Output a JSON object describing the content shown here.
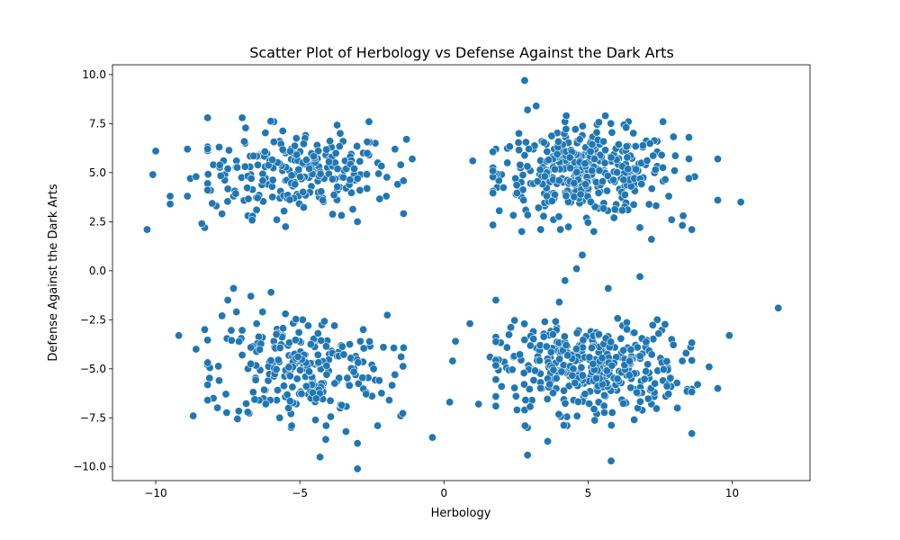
{
  "chart_data": {
    "type": "scatter",
    "title": "Scatter Plot of Herbology vs Defense Against the Dark Arts",
    "xlabel": "Herbology",
    "ylabel": "Defense Against the Dark Arts",
    "xlim": [
      -11.5,
      12.7
    ],
    "ylim": [
      -10.7,
      10.5
    ],
    "xticks": [
      -10,
      -5,
      0,
      5,
      10
    ],
    "yticks": [
      -10.0,
      -7.5,
      -5.0,
      -2.5,
      0.0,
      2.5,
      5.0,
      7.5,
      10.0
    ],
    "xtick_labels": [
      "−10",
      "−5",
      "0",
      "5",
      "10"
    ],
    "ytick_labels": [
      "−10.0",
      "−7.5",
      "−5.0",
      "−2.5",
      "0.0",
      "2.5",
      "5.0",
      "7.5",
      "10.0"
    ],
    "grid": false,
    "point_color": "#1f77b4",
    "series": [
      {
        "points": [
          [
            -10.3,
            2.1
          ],
          [
            -10.0,
            6.1
          ],
          [
            -10.1,
            4.9
          ],
          [
            -9.5,
            3.8
          ],
          [
            -9.5,
            3.4
          ],
          [
            -8.9,
            6.2
          ],
          [
            -8.8,
            4.7
          ],
          [
            -8.6,
            4.8
          ],
          [
            -8.9,
            3.8
          ],
          [
            -8.2,
            7.8
          ],
          [
            -8.3,
            2.2
          ],
          [
            -8.4,
            2.4
          ],
          [
            -8.0,
            5.4
          ],
          [
            -7.8,
            6.3
          ],
          [
            -7.6,
            4.9
          ],
          [
            -7.9,
            3.3
          ],
          [
            -7.7,
            2.9
          ],
          [
            -7.2,
            5.6
          ],
          [
            -7.0,
            7.8
          ],
          [
            -6.9,
            6.5
          ],
          [
            -6.7,
            4.9
          ],
          [
            -6.5,
            3.1
          ],
          [
            -6.2,
            5.3
          ],
          [
            -5.9,
            7.6
          ],
          [
            -5.7,
            6.6
          ],
          [
            -5.5,
            4.6
          ],
          [
            -5.8,
            2.6
          ],
          [
            -5.2,
            5.7
          ],
          [
            -4.8,
            6.9
          ],
          [
            -4.5,
            5.0
          ],
          [
            -4.2,
            3.7
          ],
          [
            -4.6,
            4.3
          ],
          [
            -3.9,
            6.3
          ],
          [
            -3.6,
            7.0
          ],
          [
            -3.3,
            5.4
          ],
          [
            -3.0,
            2.5
          ],
          [
            -3.2,
            4.6
          ],
          [
            -2.8,
            6.0
          ],
          [
            -2.6,
            7.6
          ],
          [
            -2.3,
            5.5
          ],
          [
            -2.0,
            3.8
          ],
          [
            -1.7,
            6.2
          ],
          [
            -1.5,
            5.4
          ],
          [
            -1.3,
            6.7
          ],
          [
            -1.1,
            5.7
          ],
          [
            -6.1,
            4.4
          ],
          [
            -5.1,
            3.9
          ],
          [
            -4.1,
            5.9
          ],
          [
            -3.7,
            4.1
          ],
          [
            -6.4,
            5.9
          ],
          [
            -5.3,
            6.2
          ],
          [
            -7.3,
            3.8
          ],
          [
            -4.9,
            4.8
          ],
          [
            -2.9,
            4.9
          ],
          [
            -3.5,
            6.6
          ],
          [
            -6.8,
            2.8
          ],
          [
            -8.1,
            4.1
          ],
          [
            -7.5,
            5.2
          ],
          [
            -5.6,
            5.1
          ],
          [
            -4.4,
            6.4
          ],
          [
            1.0,
            5.6
          ],
          [
            1.8,
            6.2
          ],
          [
            2.0,
            4.9
          ],
          [
            2.2,
            5.5
          ],
          [
            2.5,
            3.9
          ],
          [
            2.6,
            7.0
          ],
          [
            2.8,
            9.7
          ],
          [
            2.9,
            8.2
          ],
          [
            3.0,
            5.1
          ],
          [
            3.2,
            8.4
          ],
          [
            3.4,
            6.6
          ],
          [
            3.6,
            4.4
          ],
          [
            3.8,
            2.6
          ],
          [
            4.0,
            5.8
          ],
          [
            4.2,
            7.6
          ],
          [
            4.4,
            3.5
          ],
          [
            4.6,
            5.2
          ],
          [
            4.8,
            6.9
          ],
          [
            5.0,
            4.1
          ],
          [
            5.2,
            2.0
          ],
          [
            5.4,
            5.6
          ],
          [
            5.6,
            7.9
          ],
          [
            5.8,
            4.6
          ],
          [
            6.0,
            3.1
          ],
          [
            6.2,
            6.1
          ],
          [
            6.4,
            7.6
          ],
          [
            6.6,
            4.3
          ],
          [
            6.8,
            2.2
          ],
          [
            7.0,
            5.4
          ],
          [
            7.2,
            1.6
          ],
          [
            7.4,
            6.6
          ],
          [
            7.6,
            7.6
          ],
          [
            7.8,
            3.8
          ],
          [
            8.0,
            5.1
          ],
          [
            8.3,
            2.8
          ],
          [
            8.5,
            6.8
          ],
          [
            8.6,
            2.1
          ],
          [
            8.7,
            4.8
          ],
          [
            9.5,
            5.7
          ],
          [
            9.5,
            3.6
          ],
          [
            10.3,
            3.5
          ],
          [
            4.5,
            3.9
          ],
          [
            5.3,
            5.2
          ],
          [
            3.9,
            6.3
          ],
          [
            4.9,
            5.8
          ],
          [
            6.5,
            5.1
          ],
          [
            3.5,
            3.3
          ],
          [
            5.9,
            2.7
          ],
          [
            4.1,
            4.7
          ],
          [
            6.9,
            6.3
          ],
          [
            2.7,
            2.0
          ],
          [
            7.9,
            2.6
          ],
          [
            3.1,
            6.2
          ],
          [
            5.1,
            6.6
          ],
          [
            4.3,
            5.4
          ],
          [
            -9.2,
            -3.3
          ],
          [
            -8.7,
            -7.4
          ],
          [
            -8.6,
            -4.0
          ],
          [
            -8.3,
            -3.0
          ],
          [
            -8.2,
            -4.8
          ],
          [
            -8.0,
            -6.5
          ],
          [
            -7.7,
            -2.3
          ],
          [
            -7.5,
            -1.5
          ],
          [
            -7.3,
            -0.9
          ],
          [
            -7.2,
            -2.1
          ],
          [
            -7.0,
            -4.3
          ],
          [
            -6.7,
            -1.3
          ],
          [
            -6.5,
            -2.7
          ],
          [
            -6.2,
            -6.1
          ],
          [
            -6.0,
            -1.1
          ],
          [
            -5.9,
            -3.6
          ],
          [
            -5.7,
            -7.5
          ],
          [
            -5.5,
            -2.2
          ],
          [
            -5.3,
            -8.0
          ],
          [
            -5.1,
            -4.3
          ],
          [
            -4.9,
            -2.5
          ],
          [
            -4.7,
            -6.3
          ],
          [
            -4.5,
            -3.7
          ],
          [
            -4.3,
            -9.5
          ],
          [
            -4.1,
            -8.6
          ],
          [
            -4.0,
            -5.1
          ],
          [
            -3.8,
            -2.8
          ],
          [
            -3.6,
            -7.0
          ],
          [
            -3.4,
            -8.2
          ],
          [
            -3.2,
            -4.5
          ],
          [
            -3.0,
            -10.1
          ],
          [
            -3.0,
            -8.8
          ],
          [
            -2.8,
            -3.0
          ],
          [
            -2.7,
            -6.2
          ],
          [
            -2.5,
            -4.8
          ],
          [
            -2.3,
            -7.9
          ],
          [
            -2.1,
            -3.9
          ],
          [
            -1.9,
            -6.6
          ],
          [
            -1.7,
            -5.3
          ],
          [
            -1.5,
            -7.4
          ],
          [
            -6.8,
            -5.0
          ],
          [
            -5.4,
            -4.9
          ],
          [
            -4.4,
            -6.0
          ],
          [
            -3.9,
            -4.1
          ],
          [
            -6.3,
            -3.4
          ],
          [
            -7.8,
            -5.6
          ],
          [
            -4.8,
            -5.4
          ],
          [
            -3.3,
            -5.8
          ],
          [
            -5.8,
            -6.6
          ],
          [
            -2.9,
            -3.6
          ],
          [
            -0.4,
            -8.5
          ],
          [
            0.2,
            -6.7
          ],
          [
            0.3,
            -4.6
          ],
          [
            0.4,
            -3.6
          ],
          [
            0.9,
            -2.7
          ],
          [
            1.2,
            -6.8
          ],
          [
            1.6,
            -4.4
          ],
          [
            1.8,
            -1.5
          ],
          [
            2.0,
            -5.9
          ],
          [
            2.3,
            -2.9
          ],
          [
            2.5,
            -6.4
          ],
          [
            2.8,
            -7.1
          ],
          [
            2.9,
            -8.0
          ],
          [
            2.9,
            -9.4
          ],
          [
            3.1,
            -3.1
          ],
          [
            3.3,
            -5.2
          ],
          [
            3.5,
            -2.6
          ],
          [
            3.6,
            -8.7
          ],
          [
            3.8,
            -4.1
          ],
          [
            4.0,
            -1.6
          ],
          [
            4.2,
            -0.5
          ],
          [
            4.5,
            -6.6
          ],
          [
            4.6,
            0.1
          ],
          [
            4.8,
            0.8
          ],
          [
            4.9,
            -5.5
          ],
          [
            5.1,
            -3.1
          ],
          [
            5.3,
            -7.3
          ],
          [
            5.5,
            -4.0
          ],
          [
            5.7,
            -0.9
          ],
          [
            5.8,
            -9.7
          ],
          [
            6.0,
            -6.1
          ],
          [
            6.2,
            -2.8
          ],
          [
            6.4,
            -5.0
          ],
          [
            6.6,
            -7.6
          ],
          [
            6.8,
            -0.3
          ],
          [
            7.0,
            -3.9
          ],
          [
            7.2,
            -6.8
          ],
          [
            7.4,
            -2.5
          ],
          [
            7.6,
            -5.6
          ],
          [
            7.9,
            -3.5
          ],
          [
            8.1,
            -7.0
          ],
          [
            8.4,
            -4.2
          ],
          [
            8.6,
            -8.3
          ],
          [
            8.8,
            -5.8
          ],
          [
            9.2,
            -4.9
          ],
          [
            9.5,
            -6.0
          ],
          [
            9.9,
            -3.3
          ],
          [
            11.6,
            -1.9
          ],
          [
            4.4,
            -5.2
          ],
          [
            5.4,
            -5.9
          ],
          [
            3.7,
            -4.8
          ],
          [
            6.1,
            -4.4
          ],
          [
            4.7,
            -3.8
          ],
          [
            5.6,
            -6.4
          ],
          [
            3.4,
            -6.0
          ]
        ]
      }
    ]
  }
}
